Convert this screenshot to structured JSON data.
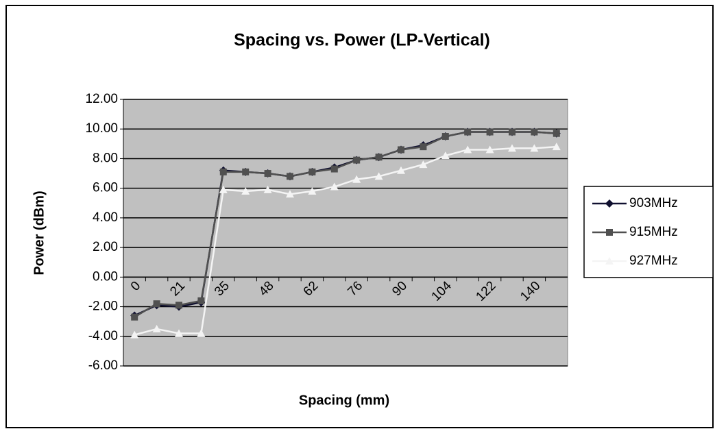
{
  "chart_data": {
    "type": "line",
    "title": "Spacing vs. Power (LP-Vertical)",
    "x_label": "Spacing (mm)",
    "y_label": "Power (dBm)",
    "categories": [
      "0",
      null,
      "21",
      null,
      "35",
      null,
      "48",
      null,
      "62",
      null,
      "76",
      null,
      "90",
      null,
      "104",
      null,
      "122",
      null,
      "140",
      null
    ],
    "series": [
      {
        "name": "903MHz",
        "color": "#101030",
        "marker": "diamond",
        "values": [
          -2.6,
          -1.9,
          -2.0,
          -1.7,
          7.2,
          7.1,
          7.0,
          6.8,
          7.1,
          7.4,
          7.9,
          8.1,
          8.6,
          8.9,
          9.5,
          9.8,
          9.8,
          9.8,
          9.8,
          9.7
        ]
      },
      {
        "name": "915MHz",
        "color": "#505050",
        "marker": "square",
        "values": [
          -2.7,
          -1.8,
          -1.9,
          -1.6,
          7.1,
          7.1,
          7.0,
          6.8,
          7.1,
          7.3,
          7.9,
          8.1,
          8.6,
          8.8,
          9.5,
          9.8,
          9.8,
          9.8,
          9.8,
          9.7
        ]
      },
      {
        "name": "927MHz",
        "color": "#f4f4f4",
        "marker": "triangle",
        "values": [
          -3.9,
          -3.5,
          -3.8,
          -3.8,
          5.9,
          5.8,
          5.9,
          5.6,
          5.8,
          6.1,
          6.6,
          6.8,
          7.2,
          7.6,
          8.2,
          8.6,
          8.6,
          8.7,
          8.7,
          8.8
        ]
      }
    ],
    "ylim": [
      -6,
      12
    ],
    "yticks": [
      {
        "value": -6,
        "label": "-6.00"
      },
      {
        "value": -4,
        "label": "-4.00"
      },
      {
        "value": -2,
        "label": "-2.00"
      },
      {
        "value": 0,
        "label": "0.00"
      },
      {
        "value": 2,
        "label": "2.00"
      },
      {
        "value": 4,
        "label": "4.00"
      },
      {
        "value": 6,
        "label": "6.00"
      },
      {
        "value": 8,
        "label": "8.00"
      },
      {
        "value": 10,
        "label": "10.00"
      },
      {
        "value": 12,
        "label": "12.00"
      }
    ],
    "grid": true,
    "legend": "right",
    "plot_background": "#c0c0c0"
  }
}
